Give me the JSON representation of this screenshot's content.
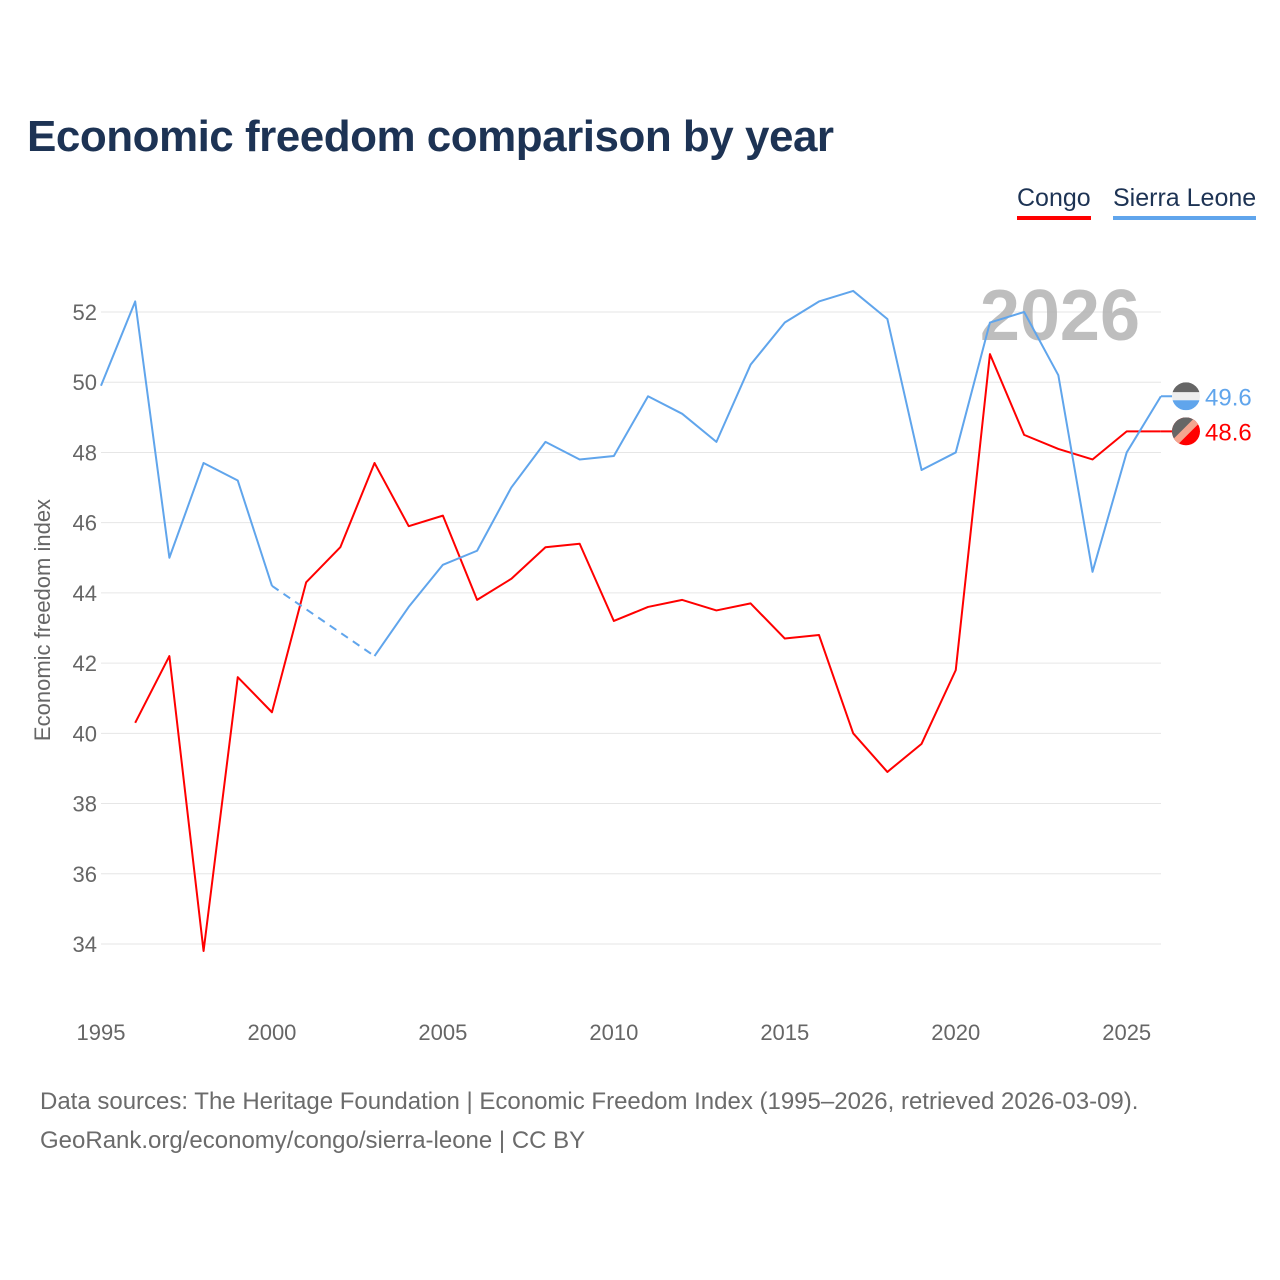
{
  "title": "Economic freedom comparison by year",
  "legend": [
    "Congo",
    "Sierra Leone"
  ],
  "footer": {
    "line1": "Data sources: The Heritage Foundation | Economic Freedom Index (1995–2026, retrieved 2026-03-09).",
    "line2": "GeoRank.org/economy/congo/sierra-leone | CC BY"
  },
  "colors": {
    "Congo": "#ff0000",
    "Sierra Leone": "#60a5ec"
  },
  "chart_data": {
    "type": "line",
    "title": "Economic freedom comparison by year",
    "xlabel": "",
    "ylabel": "Economic freedom index",
    "year_watermark": "2026",
    "xlim": [
      1995,
      2026
    ],
    "ylim": [
      33,
      53
    ],
    "xticks": [
      1995,
      2000,
      2005,
      2010,
      2015,
      2020,
      2025
    ],
    "yticks": [
      34,
      36,
      38,
      40,
      42,
      44,
      46,
      48,
      50,
      52
    ],
    "grid": true,
    "legend_position": "top-right",
    "x": [
      1995,
      1996,
      1997,
      1998,
      1999,
      2000,
      2001,
      2002,
      2003,
      2004,
      2005,
      2006,
      2007,
      2008,
      2009,
      2010,
      2011,
      2012,
      2013,
      2014,
      2015,
      2016,
      2017,
      2018,
      2019,
      2020,
      2021,
      2022,
      2023,
      2024,
      2025,
      2026
    ],
    "series": [
      {
        "name": "Congo",
        "end_label": "48.6",
        "values": [
          null,
          40.3,
          42.2,
          33.8,
          41.6,
          40.6,
          44.3,
          45.3,
          47.7,
          45.9,
          46.2,
          43.8,
          44.4,
          45.3,
          45.4,
          43.2,
          43.6,
          43.8,
          43.5,
          43.7,
          42.7,
          42.8,
          40.0,
          38.9,
          39.7,
          41.8,
          50.8,
          48.5,
          48.1,
          47.8,
          48.6,
          48.6
        ]
      },
      {
        "name": "Sierra Leone",
        "end_label": "49.6",
        "values": [
          49.9,
          52.3,
          45.0,
          47.7,
          47.2,
          44.2,
          null,
          null,
          42.2,
          43.6,
          44.8,
          45.2,
          47.0,
          48.3,
          47.8,
          47.9,
          49.6,
          49.1,
          48.3,
          50.5,
          51.7,
          52.3,
          52.6,
          51.8,
          47.5,
          48.0,
          51.7,
          52.0,
          50.2,
          44.6,
          48.0,
          49.6
        ]
      }
    ]
  }
}
